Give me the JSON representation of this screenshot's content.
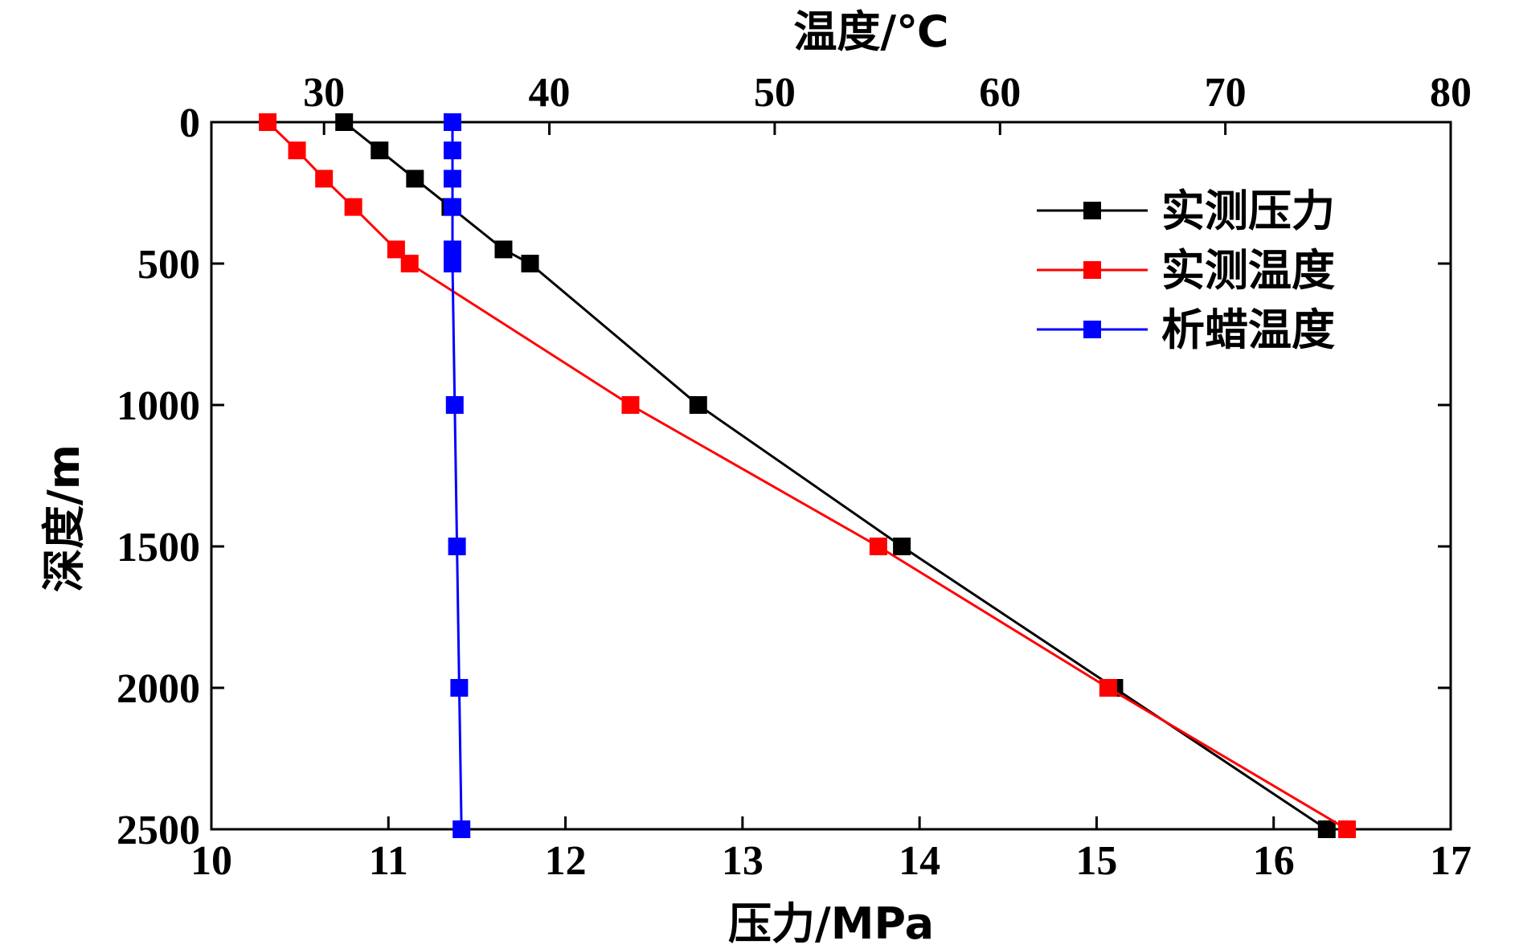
{
  "chart_data": {
    "type": "line",
    "title": "",
    "top_axis": {
      "label": "温度/℃",
      "range": [
        25,
        80
      ],
      "ticks": [
        30,
        40,
        50,
        60,
        70,
        80
      ]
    },
    "bottom_axis": {
      "label": "压力/MPa",
      "range": [
        10,
        17
      ],
      "ticks": [
        10,
        11,
        12,
        13,
        14,
        15,
        16,
        17
      ]
    },
    "left_axis": {
      "label": "深度/m",
      "range": [
        0,
        2500
      ],
      "reversed": true,
      "ticks": [
        0,
        500,
        1000,
        1500,
        2000,
        2500
      ]
    },
    "legend_position": "top-right",
    "series": [
      {
        "name": "实测压力",
        "color": "#000000",
        "x_axis": "bottom",
        "points": [
          {
            "x": 10.75,
            "depth": 0
          },
          {
            "x": 10.95,
            "depth": 100
          },
          {
            "x": 11.15,
            "depth": 200
          },
          {
            "x": 11.35,
            "depth": 300
          },
          {
            "x": 11.65,
            "depth": 450
          },
          {
            "x": 11.8,
            "depth": 500
          },
          {
            "x": 12.75,
            "depth": 1000
          },
          {
            "x": 13.9,
            "depth": 1500
          },
          {
            "x": 15.1,
            "depth": 2000
          },
          {
            "x": 16.3,
            "depth": 2500
          }
        ]
      },
      {
        "name": "实测温度",
        "color": "#ff0000",
        "x_axis": "top",
        "points": [
          {
            "x": 27.5,
            "depth": 0
          },
          {
            "x": 28.8,
            "depth": 100
          },
          {
            "x": 30.0,
            "depth": 200
          },
          {
            "x": 31.3,
            "depth": 300
          },
          {
            "x": 33.2,
            "depth": 450
          },
          {
            "x": 33.8,
            "depth": 500
          },
          {
            "x": 43.6,
            "depth": 1000
          },
          {
            "x": 54.6,
            "depth": 1500
          },
          {
            "x": 64.8,
            "depth": 2000
          },
          {
            "x": 75.4,
            "depth": 2500
          }
        ]
      },
      {
        "name": "析蜡温度",
        "color": "#0000ff",
        "x_axis": "top",
        "points": [
          {
            "x": 35.7,
            "depth": 0
          },
          {
            "x": 35.7,
            "depth": 100
          },
          {
            "x": 35.7,
            "depth": 200
          },
          {
            "x": 35.7,
            "depth": 300
          },
          {
            "x": 35.7,
            "depth": 450
          },
          {
            "x": 35.7,
            "depth": 500
          },
          {
            "x": 35.8,
            "depth": 1000
          },
          {
            "x": 35.9,
            "depth": 1500
          },
          {
            "x": 36.0,
            "depth": 2000
          },
          {
            "x": 36.1,
            "depth": 2500
          }
        ]
      }
    ]
  }
}
